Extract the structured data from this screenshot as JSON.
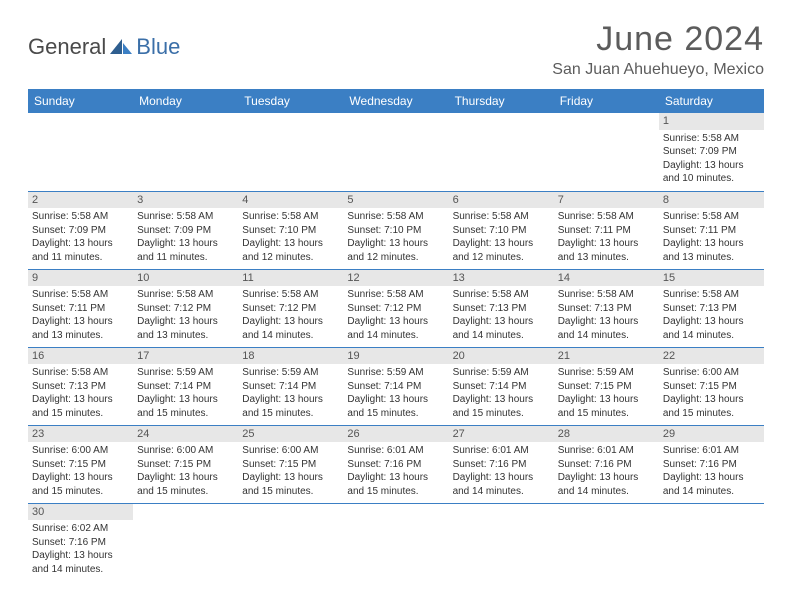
{
  "brand": {
    "part1": "General",
    "part2": "Blue"
  },
  "title": "June 2024",
  "location": "San Juan Ahuehueyo, Mexico",
  "colors": {
    "header_bg": "#3b7fc4",
    "header_fg": "#ffffff",
    "daynum_bg": "#e7e7e7",
    "rule": "#3b7fc4",
    "brand_gray": "#4a4a4a",
    "brand_blue": "#3b6fa8"
  },
  "daysOfWeek": [
    "Sunday",
    "Monday",
    "Tuesday",
    "Wednesday",
    "Thursday",
    "Friday",
    "Saturday"
  ],
  "startWeekday": 6,
  "monthLength": 30,
  "labels": {
    "sunrise": "Sunrise:",
    "sunset": "Sunset:",
    "daylight": "Daylight:"
  },
  "days": {
    "1": {
      "sunrise": "5:58 AM",
      "sunset": "7:09 PM",
      "daylight": "13 hours and 10 minutes."
    },
    "2": {
      "sunrise": "5:58 AM",
      "sunset": "7:09 PM",
      "daylight": "13 hours and 11 minutes."
    },
    "3": {
      "sunrise": "5:58 AM",
      "sunset": "7:09 PM",
      "daylight": "13 hours and 11 minutes."
    },
    "4": {
      "sunrise": "5:58 AM",
      "sunset": "7:10 PM",
      "daylight": "13 hours and 12 minutes."
    },
    "5": {
      "sunrise": "5:58 AM",
      "sunset": "7:10 PM",
      "daylight": "13 hours and 12 minutes."
    },
    "6": {
      "sunrise": "5:58 AM",
      "sunset": "7:10 PM",
      "daylight": "13 hours and 12 minutes."
    },
    "7": {
      "sunrise": "5:58 AM",
      "sunset": "7:11 PM",
      "daylight": "13 hours and 13 minutes."
    },
    "8": {
      "sunrise": "5:58 AM",
      "sunset": "7:11 PM",
      "daylight": "13 hours and 13 minutes."
    },
    "9": {
      "sunrise": "5:58 AM",
      "sunset": "7:11 PM",
      "daylight": "13 hours and 13 minutes."
    },
    "10": {
      "sunrise": "5:58 AM",
      "sunset": "7:12 PM",
      "daylight": "13 hours and 13 minutes."
    },
    "11": {
      "sunrise": "5:58 AM",
      "sunset": "7:12 PM",
      "daylight": "13 hours and 14 minutes."
    },
    "12": {
      "sunrise": "5:58 AM",
      "sunset": "7:12 PM",
      "daylight": "13 hours and 14 minutes."
    },
    "13": {
      "sunrise": "5:58 AM",
      "sunset": "7:13 PM",
      "daylight": "13 hours and 14 minutes."
    },
    "14": {
      "sunrise": "5:58 AM",
      "sunset": "7:13 PM",
      "daylight": "13 hours and 14 minutes."
    },
    "15": {
      "sunrise": "5:58 AM",
      "sunset": "7:13 PM",
      "daylight": "13 hours and 14 minutes."
    },
    "16": {
      "sunrise": "5:58 AM",
      "sunset": "7:13 PM",
      "daylight": "13 hours and 15 minutes."
    },
    "17": {
      "sunrise": "5:59 AM",
      "sunset": "7:14 PM",
      "daylight": "13 hours and 15 minutes."
    },
    "18": {
      "sunrise": "5:59 AM",
      "sunset": "7:14 PM",
      "daylight": "13 hours and 15 minutes."
    },
    "19": {
      "sunrise": "5:59 AM",
      "sunset": "7:14 PM",
      "daylight": "13 hours and 15 minutes."
    },
    "20": {
      "sunrise": "5:59 AM",
      "sunset": "7:14 PM",
      "daylight": "13 hours and 15 minutes."
    },
    "21": {
      "sunrise": "5:59 AM",
      "sunset": "7:15 PM",
      "daylight": "13 hours and 15 minutes."
    },
    "22": {
      "sunrise": "6:00 AM",
      "sunset": "7:15 PM",
      "daylight": "13 hours and 15 minutes."
    },
    "23": {
      "sunrise": "6:00 AM",
      "sunset": "7:15 PM",
      "daylight": "13 hours and 15 minutes."
    },
    "24": {
      "sunrise": "6:00 AM",
      "sunset": "7:15 PM",
      "daylight": "13 hours and 15 minutes."
    },
    "25": {
      "sunrise": "6:00 AM",
      "sunset": "7:15 PM",
      "daylight": "13 hours and 15 minutes."
    },
    "26": {
      "sunrise": "6:01 AM",
      "sunset": "7:16 PM",
      "daylight": "13 hours and 15 minutes."
    },
    "27": {
      "sunrise": "6:01 AM",
      "sunset": "7:16 PM",
      "daylight": "13 hours and 14 minutes."
    },
    "28": {
      "sunrise": "6:01 AM",
      "sunset": "7:16 PM",
      "daylight": "13 hours and 14 minutes."
    },
    "29": {
      "sunrise": "6:01 AM",
      "sunset": "7:16 PM",
      "daylight": "13 hours and 14 minutes."
    },
    "30": {
      "sunrise": "6:02 AM",
      "sunset": "7:16 PM",
      "daylight": "13 hours and 14 minutes."
    }
  }
}
